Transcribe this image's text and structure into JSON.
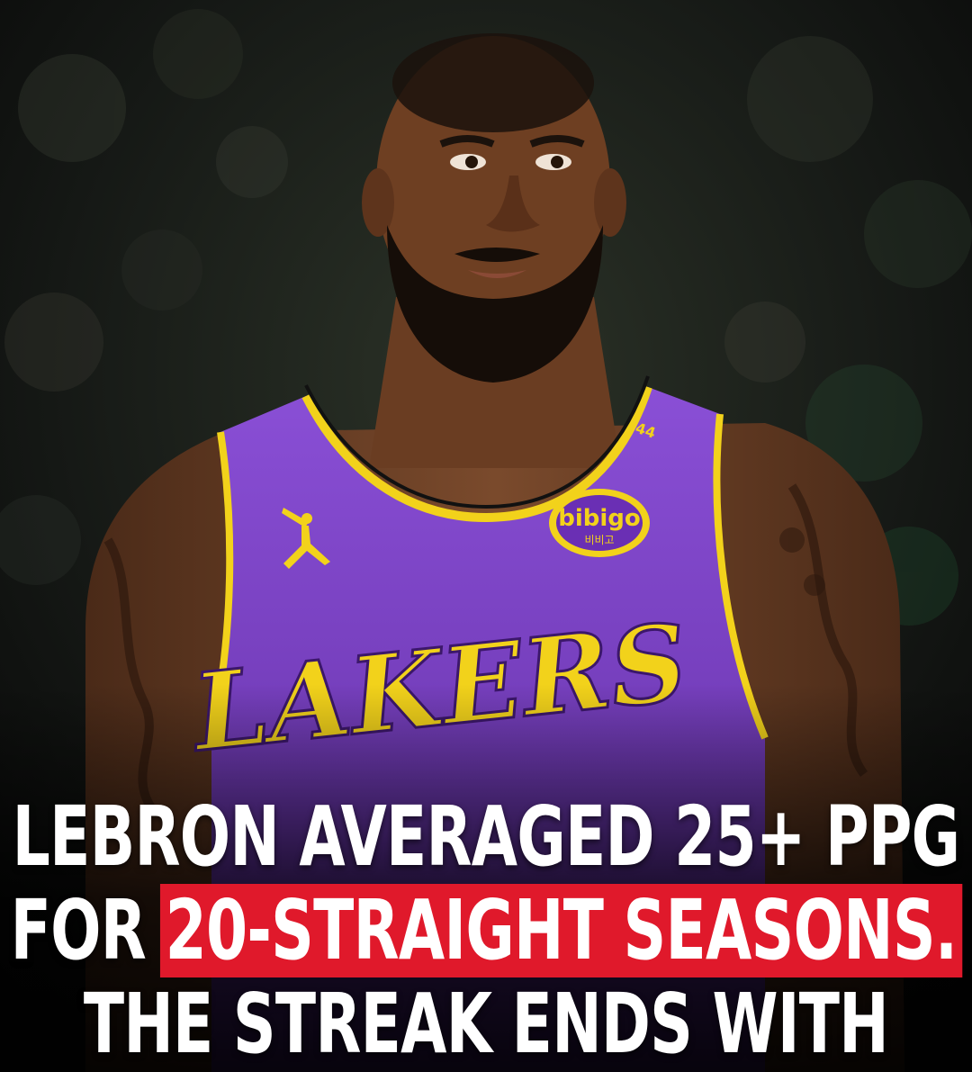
{
  "photo": {
    "jersey_wordmark": "LAKERS",
    "jersey_number": "44",
    "patch_text": "bibigo",
    "patch_subtext": "비비고",
    "jersey_color": "#7b3fc4",
    "trim_color": "#f2d21b"
  },
  "headline": {
    "line1": "LEBRON AVERAGED 25+ PPG",
    "line2_prefix": "FOR",
    "line2_highlight": "20-STRAIGHT SEASONS.",
    "line3": "THE STREAK ENDS WITH",
    "highlight_color": "#e0192b"
  }
}
